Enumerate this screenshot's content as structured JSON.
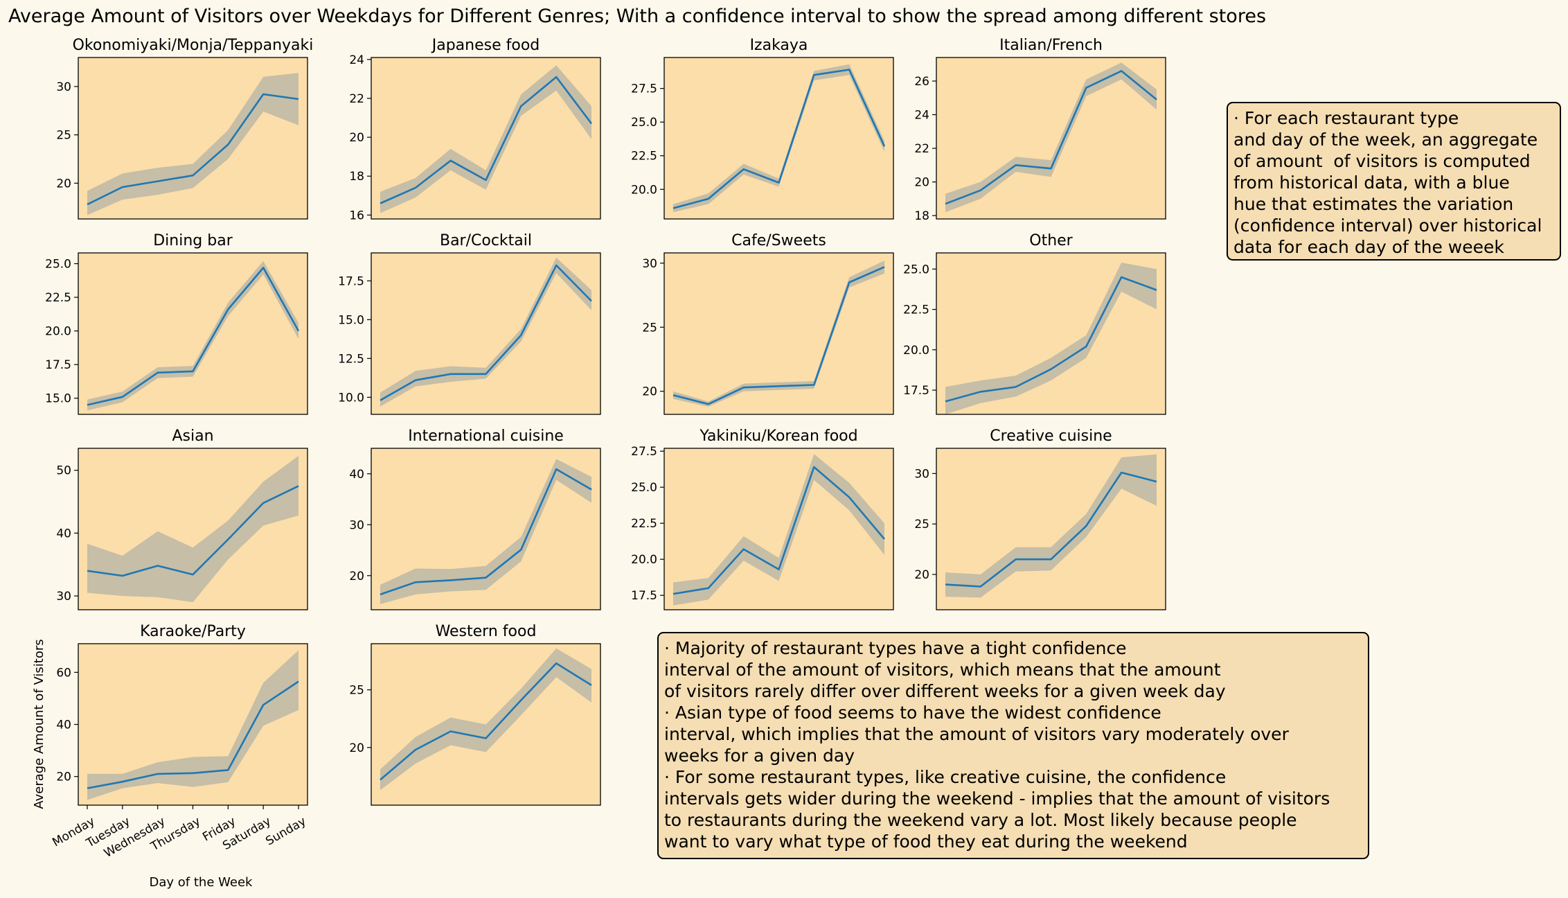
{
  "figure_title": "Average Amount of Visitors over Weekdays for Different Genres; With a confidence interval to show the spread among different stores",
  "colors": {
    "background": "#fdf8ec",
    "axes_face": "#fcdeab",
    "line": "#1f77b4",
    "band": "#bcb8a4",
    "note_box": "#f5deb3"
  },
  "notes": {
    "right": [
      "· For each restaurant type",
      "and day of the week, an aggregate",
      "of amount  of visitors is computed",
      "from historical data, with a blue",
      "hue that estimates the variation",
      "(confidence interval) over historical",
      "data for each day of the weeek"
    ],
    "bottom": [
      "· Majority of restaurant types have a tight confidence",
      "interval of the amount of visitors, which means that the amount",
      "of visitors rarely differ over different weeks for a given week day",
      "· Asian type of food seems to have the widest confidence",
      "interval, which implies that the amount of visitors vary moderately over",
      "weeks for a given day",
      "· For some restaurant types, like creative cuisine, the confidence",
      "intervals gets wider during the weekend - implies that the amount of visitors",
      "to restaurants during the weekend vary a lot. Most likely because people",
      "want to vary what type of food they eat during the weekend"
    ]
  },
  "chart_data": [
    {
      "type": "line",
      "title": "Okonomiyaki/Monja/Teppanyaki",
      "x": [
        "Monday",
        "Tuesday",
        "Wednesday",
        "Thursday",
        "Friday",
        "Saturday",
        "Sunday"
      ],
      "ylim": [
        16.3,
        33
      ],
      "yticks": [
        "20",
        "25",
        "30"
      ],
      "yticks_values": [
        20,
        25,
        30
      ],
      "series": [
        {
          "values": [
            17.8,
            19.6,
            20.2,
            20.8,
            24.0,
            29.2,
            28.7
          ]
        }
      ],
      "band_lower": [
        16.7,
        18.3,
        18.8,
        19.5,
        22.5,
        27.4,
        26.0
      ],
      "band_upper": [
        19.2,
        21.0,
        21.6,
        22.0,
        25.5,
        31.0,
        31.4
      ]
    },
    {
      "type": "line",
      "title": "Japanese food",
      "x": [
        "Monday",
        "Tuesday",
        "Wednesday",
        "Thursday",
        "Friday",
        "Saturday",
        "Sunday"
      ],
      "ylim": [
        15.8,
        24.1
      ],
      "yticks": [
        "16",
        "18",
        "20",
        "22",
        "24"
      ],
      "yticks_values": [
        16,
        18,
        20,
        22,
        24
      ],
      "series": [
        {
          "values": [
            16.6,
            17.4,
            18.8,
            17.8,
            21.6,
            23.1,
            20.7
          ]
        }
      ],
      "band_lower": [
        16.1,
        16.9,
        18.3,
        17.3,
        21.1,
        22.4,
        19.9
      ],
      "band_upper": [
        17.2,
        17.9,
        19.4,
        18.3,
        22.2,
        23.7,
        21.6
      ]
    },
    {
      "type": "line",
      "title": "Izakaya",
      "x": [
        "Monday",
        "Tuesday",
        "Wednesday",
        "Thursday",
        "Friday",
        "Saturday",
        "Sunday"
      ],
      "ylim": [
        17.8,
        29.8
      ],
      "yticks": [
        "20.0",
        "22.5",
        "25.0",
        "27.5"
      ],
      "yticks_values": [
        20,
        22.5,
        25,
        27.5
      ],
      "series": [
        {
          "values": [
            18.6,
            19.3,
            21.5,
            20.5,
            28.5,
            28.9,
            23.2
          ]
        }
      ],
      "band_lower": [
        18.3,
        18.9,
        21.1,
        20.2,
        28.1,
        28.5,
        22.8
      ],
      "band_upper": [
        18.9,
        19.7,
        21.9,
        20.8,
        28.8,
        29.3,
        23.6
      ]
    },
    {
      "type": "line",
      "title": "Italian/French",
      "x": [
        "Monday",
        "Tuesday",
        "Wednesday",
        "Thursday",
        "Friday",
        "Saturday",
        "Sunday"
      ],
      "ylim": [
        17.8,
        27.4
      ],
      "yticks": [
        "18",
        "20",
        "22",
        "24",
        "26"
      ],
      "yticks_values": [
        18,
        20,
        22,
        24,
        26
      ],
      "series": [
        {
          "values": [
            18.7,
            19.5,
            21.0,
            20.8,
            25.6,
            26.6,
            24.9
          ]
        }
      ],
      "band_lower": [
        18.2,
        19.0,
        20.6,
        20.3,
        25.1,
        26.1,
        24.3
      ],
      "band_upper": [
        19.3,
        20.0,
        21.5,
        21.3,
        26.1,
        27.1,
        25.5
      ]
    },
    {
      "type": "line",
      "title": "Dining bar",
      "x": [
        "Monday",
        "Tuesday",
        "Wednesday",
        "Thursday",
        "Friday",
        "Saturday",
        "Sunday"
      ],
      "ylim": [
        13.8,
        25.8
      ],
      "yticks": [
        "15.0",
        "17.5",
        "20.0",
        "22.5",
        "25.0"
      ],
      "yticks_values": [
        15,
        17.5,
        20,
        22.5,
        25
      ],
      "series": [
        {
          "values": [
            14.5,
            15.1,
            16.9,
            17.0,
            21.6,
            24.7,
            20.0
          ]
        }
      ],
      "band_lower": [
        14.1,
        14.7,
        16.5,
        16.6,
        21.1,
        24.2,
        19.4
      ],
      "band_upper": [
        14.9,
        15.5,
        17.3,
        17.4,
        22.1,
        25.2,
        20.6
      ]
    },
    {
      "type": "line",
      "title": "Bar/Cocktail",
      "x": [
        "Monday",
        "Tuesday",
        "Wednesday",
        "Thursday",
        "Friday",
        "Saturday",
        "Sunday"
      ],
      "ylim": [
        8.9,
        19.3
      ],
      "yticks": [
        "10.0",
        "12.5",
        "15.0",
        "17.5"
      ],
      "yticks_values": [
        10,
        12.5,
        15,
        17.5
      ],
      "series": [
        {
          "values": [
            9.8,
            11.1,
            11.5,
            11.5,
            14.0,
            18.5,
            16.2
          ]
        }
      ],
      "band_lower": [
        9.4,
        10.7,
        11.0,
        11.2,
        13.6,
        18.0,
        15.6
      ],
      "band_upper": [
        10.3,
        11.7,
        12.0,
        11.9,
        14.4,
        19.0,
        16.9
      ]
    },
    {
      "type": "line",
      "title": "Cafe/Sweets",
      "x": [
        "Monday",
        "Tuesday",
        "Wednesday",
        "Thursday",
        "Friday",
        "Saturday",
        "Sunday"
      ],
      "ylim": [
        18.2,
        30.8
      ],
      "yticks": [
        "20",
        "25",
        "30"
      ],
      "yticks_values": [
        20,
        25,
        30
      ],
      "series": [
        {
          "values": [
            19.7,
            19.0,
            20.3,
            20.4,
            20.5,
            28.5,
            29.7
          ]
        }
      ],
      "band_lower": [
        19.4,
        18.8,
        20.0,
        20.1,
        20.2,
        28.1,
        29.2
      ],
      "band_upper": [
        20.0,
        19.2,
        20.6,
        20.7,
        20.8,
        28.9,
        30.2
      ]
    },
    {
      "type": "line",
      "title": "Other",
      "x": [
        "Monday",
        "Tuesday",
        "Wednesday",
        "Thursday",
        "Friday",
        "Saturday",
        "Sunday"
      ],
      "ylim": [
        16.0,
        26.0
      ],
      "yticks": [
        "17.5",
        "20.0",
        "22.5",
        "25.0"
      ],
      "yticks_values": [
        17.5,
        20,
        22.5,
        25
      ],
      "series": [
        {
          "values": [
            16.8,
            17.4,
            17.7,
            18.8,
            20.2,
            24.5,
            23.7
          ]
        }
      ],
      "band_lower": [
        16.0,
        16.7,
        17.1,
        18.1,
        19.5,
        23.6,
        22.5
      ],
      "band_upper": [
        17.7,
        18.1,
        18.4,
        19.5,
        20.9,
        25.4,
        25.0
      ]
    },
    {
      "type": "line",
      "title": "Asian",
      "x": [
        "Monday",
        "Tuesday",
        "Wednesday",
        "Thursday",
        "Friday",
        "Saturday",
        "Sunday"
      ],
      "ylim": [
        27.8,
        53.5
      ],
      "yticks": [
        "30",
        "40",
        "50"
      ],
      "yticks_values": [
        30,
        40,
        50
      ],
      "series": [
        {
          "values": [
            34.0,
            33.2,
            34.8,
            33.4,
            39.0,
            44.8,
            47.5
          ]
        }
      ],
      "band_lower": [
        30.5,
        30.0,
        29.8,
        29.0,
        35.8,
        41.2,
        42.8
      ],
      "band_upper": [
        38.3,
        36.4,
        40.3,
        37.7,
        42.0,
        48.2,
        52.3
      ]
    },
    {
      "type": "line",
      "title": "International cuisine",
      "x": [
        "Monday",
        "Tuesday",
        "Wednesday",
        "Thursday",
        "Friday",
        "Saturday",
        "Sunday"
      ],
      "ylim": [
        13.3,
        45.0
      ],
      "yticks": [
        "20",
        "30",
        "40"
      ],
      "yticks_values": [
        20,
        30,
        40
      ],
      "series": [
        {
          "values": [
            16.3,
            18.7,
            19.1,
            19.6,
            25.1,
            40.9,
            36.9
          ]
        }
      ],
      "band_lower": [
        14.4,
        16.3,
        16.9,
        17.2,
        22.8,
        38.8,
        34.3
      ],
      "band_upper": [
        18.2,
        21.4,
        21.3,
        21.9,
        27.6,
        42.9,
        39.4
      ]
    },
    {
      "type": "line",
      "title": "Yakiniku/Korean food",
      "x": [
        "Monday",
        "Tuesday",
        "Wednesday",
        "Thursday",
        "Friday",
        "Saturday",
        "Sunday"
      ],
      "ylim": [
        16.5,
        27.7
      ],
      "yticks": [
        "17.5",
        "20.0",
        "22.5",
        "25.0",
        "27.5"
      ],
      "yticks_values": [
        17.5,
        20,
        22.5,
        25,
        27.5
      ],
      "series": [
        {
          "values": [
            17.6,
            18.0,
            20.7,
            19.3,
            26.4,
            24.3,
            21.4
          ]
        }
      ],
      "band_lower": [
        16.8,
        17.2,
        19.9,
        18.5,
        25.5,
        23.4,
        20.3
      ],
      "band_upper": [
        18.4,
        18.7,
        21.6,
        20.1,
        27.3,
        25.3,
        22.5
      ]
    },
    {
      "type": "line",
      "title": "Creative cuisine",
      "x": [
        "Monday",
        "Tuesday",
        "Wednesday",
        "Thursday",
        "Friday",
        "Saturday",
        "Sunday"
      ],
      "ylim": [
        16.5,
        32.5
      ],
      "yticks": [
        "20",
        "25",
        "30"
      ],
      "yticks_values": [
        20,
        25,
        30
      ],
      "series": [
        {
          "values": [
            19.0,
            18.8,
            21.5,
            21.5,
            24.8,
            30.1,
            29.2
          ]
        }
      ],
      "band_lower": [
        17.8,
        17.7,
        20.3,
        20.4,
        23.7,
        28.5,
        26.8
      ],
      "band_upper": [
        20.2,
        20.0,
        22.7,
        22.7,
        26.0,
        31.6,
        31.9
      ]
    },
    {
      "type": "line",
      "title": "Karaoke/Party",
      "x": [
        "Monday",
        "Tuesday",
        "Wednesday",
        "Thursday",
        "Friday",
        "Saturday",
        "Sunday"
      ],
      "xlabel": "Day of the Week",
      "ylabel": "Average Amount of Visitors",
      "ylim": [
        9.0,
        71.0
      ],
      "yticks": [
        "20",
        "40",
        "60"
      ],
      "yticks_values": [
        20,
        40,
        60
      ],
      "series": [
        {
          "values": [
            15.5,
            18.0,
            21.0,
            21.3,
            22.5,
            47.5,
            56.5
          ]
        }
      ],
      "band_lower": [
        11.0,
        15.5,
        17.5,
        16.0,
        17.8,
        39.5,
        45.5
      ],
      "band_upper": [
        21.0,
        21.0,
        25.5,
        27.5,
        27.8,
        56.0,
        68.5
      ]
    },
    {
      "type": "line",
      "title": "Western food",
      "x": [
        "Monday",
        "Tuesday",
        "Wednesday",
        "Thursday",
        "Friday",
        "Saturday",
        "Sunday"
      ],
      "ylim": [
        15.0,
        29.0
      ],
      "yticks": [
        "20",
        "25"
      ],
      "yticks_values": [
        20,
        25
      ],
      "series": [
        {
          "values": [
            17.2,
            19.8,
            21.4,
            20.8,
            24.1,
            27.3,
            25.4
          ]
        }
      ],
      "band_lower": [
        16.3,
        18.6,
        20.2,
        19.6,
        22.8,
        26.1,
        23.9
      ],
      "band_upper": [
        18.1,
        20.9,
        22.6,
        22.0,
        25.1,
        28.6,
        26.8
      ]
    }
  ]
}
